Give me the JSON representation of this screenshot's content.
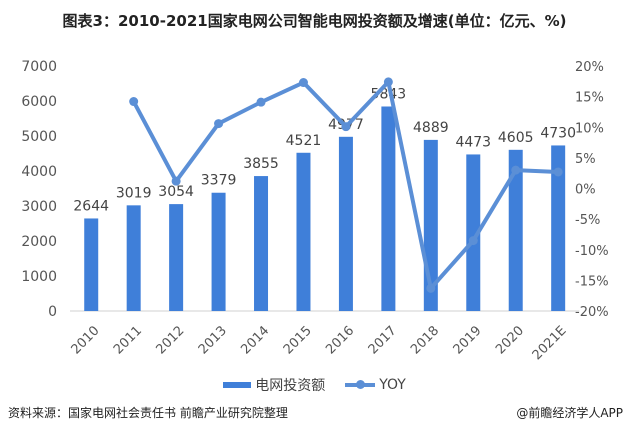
{
  "title": "图表3：2010-2021国家电网公司智能电网投资额及增速(单位：亿元、%)",
  "source": "资料来源：国家电网社会责任书 前瞻产业研究院整理",
  "credit": "@前瞻经济学人APP",
  "chart_data": {
    "type": "bar+line",
    "title": "图表3：2010-2021国家电网公司智能电网投资额及增速(单位：亿元、%)",
    "categories": [
      "2010",
      "2011",
      "2012",
      "2013",
      "2014",
      "2015",
      "2016",
      "2017",
      "2018",
      "2019",
      "2020",
      "2021E"
    ],
    "series": [
      {
        "name": "电网投资额",
        "type": "bar",
        "axis": "left",
        "values": [
          2644,
          3019,
          3054,
          3379,
          3855,
          4521,
          4977,
          5843,
          4889,
          4473,
          4605,
          4730
        ],
        "color": "#3f7fd9"
      },
      {
        "name": "YOY",
        "type": "line",
        "axis": "right",
        "values": [
          null,
          14.2,
          1.2,
          10.6,
          14.1,
          17.3,
          10.1,
          17.4,
          -16.3,
          -8.5,
          3.0,
          2.7
        ],
        "color": "#5b8fd6"
      }
    ],
    "ylim": [
      0,
      7000
    ],
    "yticks": [
      "0",
      "1000",
      "2000",
      "3000",
      "4000",
      "5000",
      "6000",
      "7000"
    ],
    "y2lim": [
      -20,
      20
    ],
    "y2ticks": [
      "-20%",
      "-15%",
      "-10%",
      "-5%",
      "0%",
      "5%",
      "10%",
      "15%",
      "20%"
    ],
    "grid": false,
    "legend": "bottom"
  }
}
